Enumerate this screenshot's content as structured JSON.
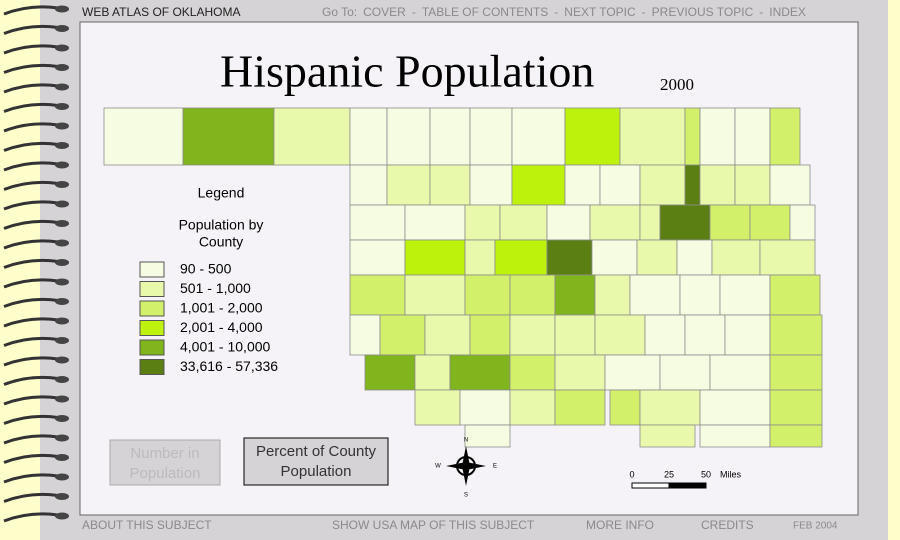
{
  "header": {
    "site": "WEB ATLAS OF OKLAHOMA",
    "goto": "Go To:",
    "links": [
      "COVER",
      "TABLE OF CONTENTS",
      "NEXT TOPIC",
      "PREVIOUS TOPIC",
      "INDEX"
    ],
    "separator": "-"
  },
  "map": {
    "title": "Hispanic Population",
    "year": "2000",
    "legend": {
      "title": "Legend",
      "subtitle": [
        "Population by",
        "County"
      ],
      "classes": [
        {
          "label": "90 - 500",
          "color": "#f6fce2"
        },
        {
          "label": "501 - 1,000",
          "color": "#e8f9ac"
        },
        {
          "label": "1,001 - 2,000",
          "color": "#d3f06a"
        },
        {
          "label": "2,001 - 4,000",
          "color": "#bdf20c"
        },
        {
          "label": "4,001 - 10,000",
          "color": "#80b51d"
        },
        {
          "label": "33,616 - 57,336",
          "color": "#5b7f12"
        }
      ]
    },
    "buttons": [
      {
        "lines": [
          "Number in",
          "Population"
        ]
      },
      {
        "lines": [
          "Percent of County",
          "Population"
        ]
      }
    ],
    "compass": {
      "north": "N",
      "east": "E",
      "south": "S",
      "west": "W"
    },
    "scale": {
      "ticks": [
        "0",
        "25",
        "50"
      ],
      "unit": "Miles"
    }
  },
  "footer": {
    "links": [
      "ABOUT THIS SUBJECT",
      "SHOW USA MAP OF THIS SUBJECT",
      "MORE INFO",
      "CREDITS"
    ],
    "date": "FEB 2004"
  }
}
